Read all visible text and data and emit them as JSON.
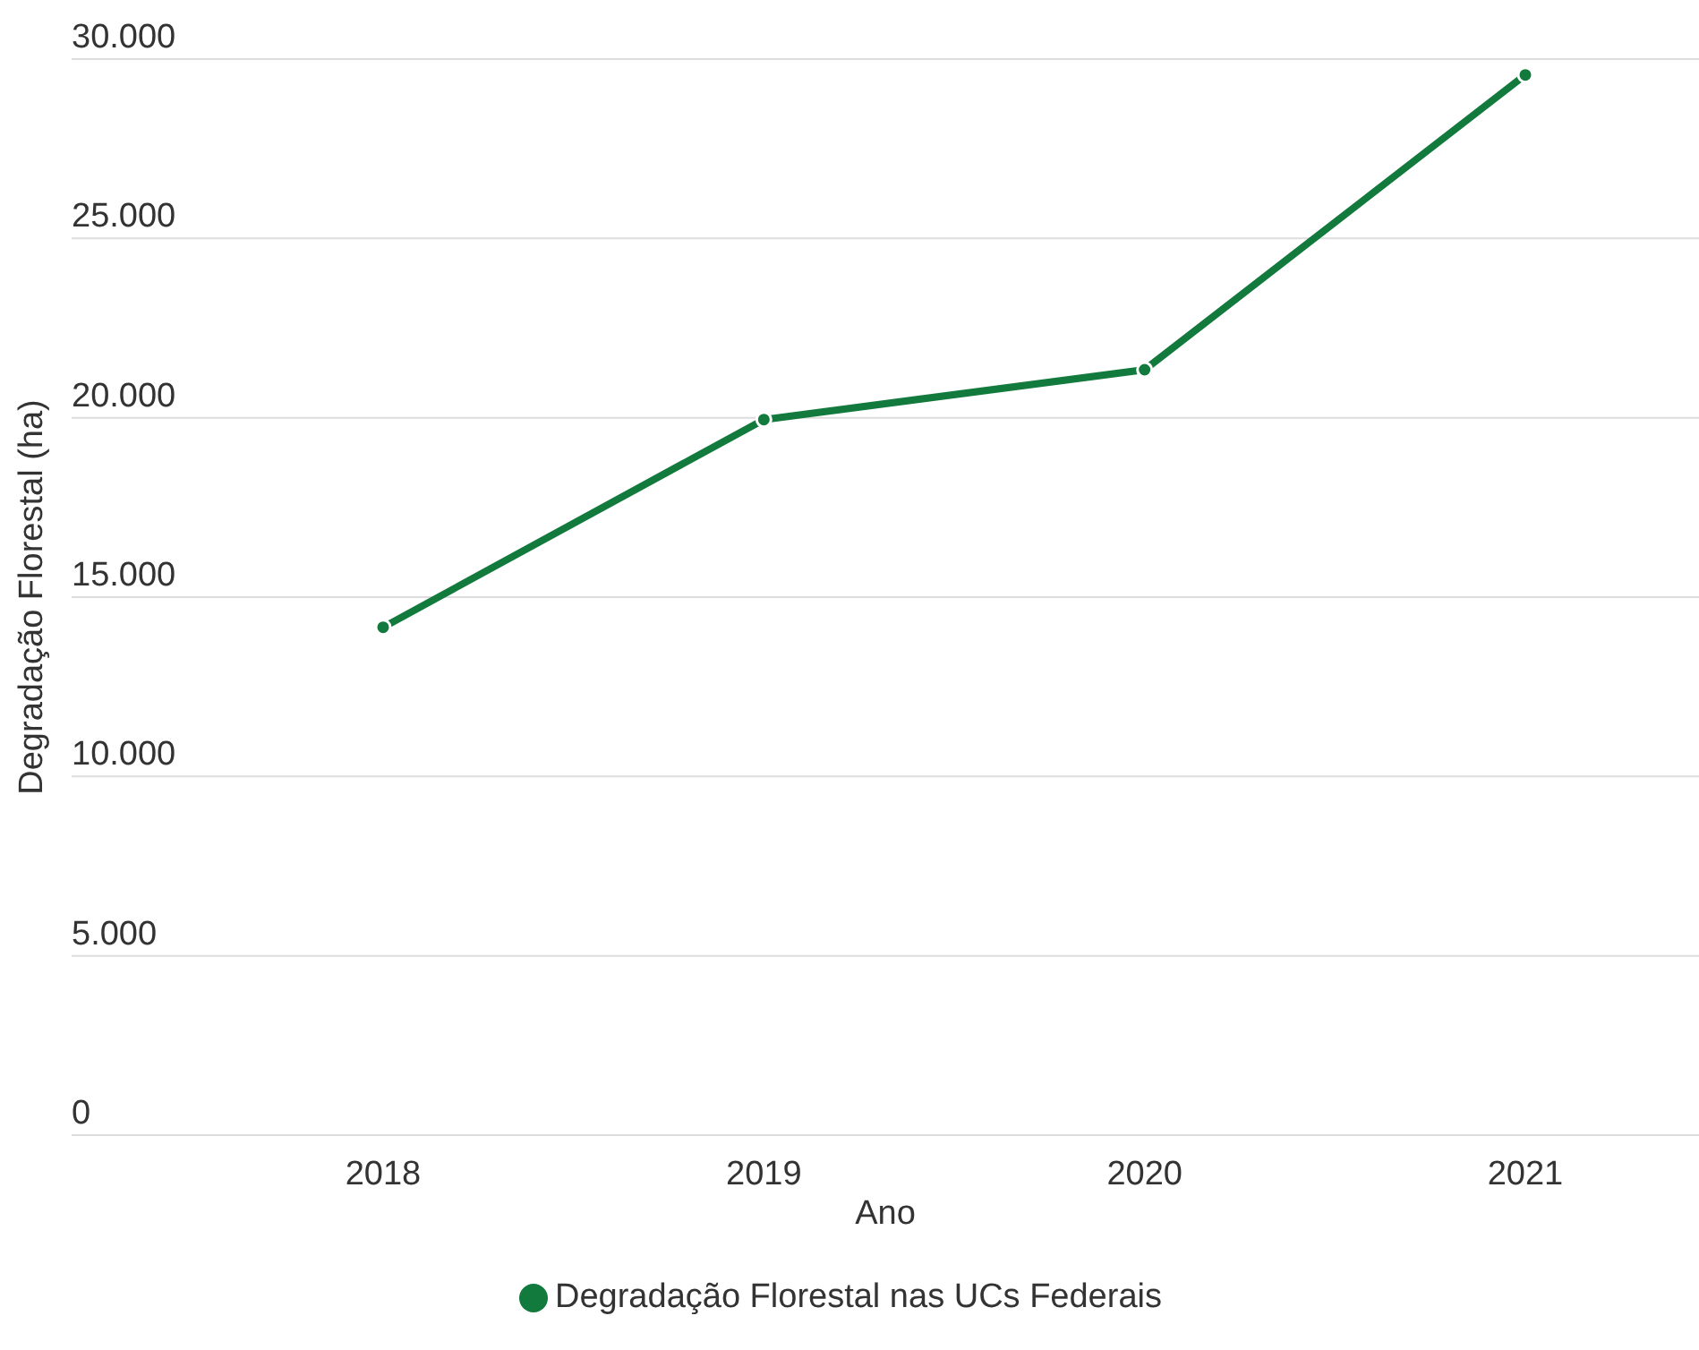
{
  "chart_data": {
    "type": "line",
    "xlabel": "Ano",
    "ylabel": "Degradação Florestal (ha)",
    "categories": [
      "2018",
      "2019",
      "2020",
      "2021"
    ],
    "series": [
      {
        "name": "Degradação Florestal nas UCs Federais",
        "color": "#127a3c",
        "values": [
          14160,
          19950,
          21340,
          29560
        ]
      }
    ],
    "ylim": [
      0,
      30000
    ],
    "yticks": [
      {
        "value": 0,
        "label": "0"
      },
      {
        "value": 5000,
        "label": "5.000"
      },
      {
        "value": 10000,
        "label": "10.000"
      },
      {
        "value": 15000,
        "label": "15.000"
      },
      {
        "value": 20000,
        "label": "20.000"
      },
      {
        "value": 25000,
        "label": "25.000"
      },
      {
        "value": 30000,
        "label": "30.000"
      }
    ],
    "grid": "y",
    "legend": "bottom",
    "marker": "circle",
    "line_style": "solid"
  }
}
